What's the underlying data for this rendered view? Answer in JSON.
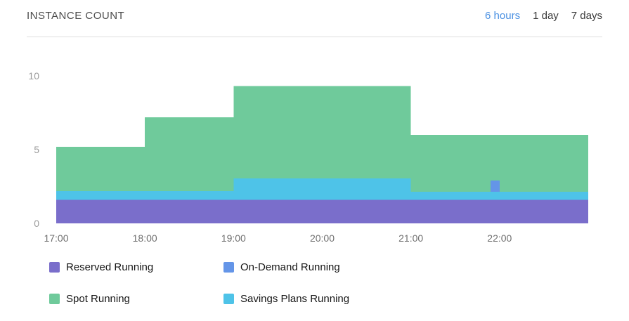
{
  "accent": "#4a90e2",
  "header": {
    "title": "INSTANCE COUNT",
    "range_options": [
      {
        "label": "6 hours",
        "active": true
      },
      {
        "label": "1 day",
        "active": false
      },
      {
        "label": "7 days",
        "active": false
      }
    ]
  },
  "chart_data": {
    "type": "area",
    "variant": "stacked-step",
    "title": "INSTANCE COUNT",
    "x_range": [
      17,
      23
    ],
    "ylim": [
      0,
      10
    ],
    "grid": "off",
    "legend_position": "bottom",
    "y_tick_values": [
      10,
      5,
      0
    ],
    "x_tick_hours": [
      17,
      18,
      19,
      20,
      21,
      22
    ],
    "x_tick_labels": [
      "17:00",
      "18:00",
      "19:00",
      "20:00",
      "21:00",
      "22:00"
    ],
    "stack_order": [
      "reserved",
      "savings",
      "on_demand",
      "spot"
    ],
    "colors": {
      "reserved": "#7a6ecb",
      "on_demand": "#6495e8",
      "spot": "#6fca9b",
      "savings": "#4ec3e8"
    },
    "series_labels": {
      "reserved": "Reserved Running",
      "on_demand": "On-Demand Running",
      "spot": "Spot Running",
      "savings": "Savings Plans Running"
    },
    "segments": [
      {
        "from": 17.0,
        "to": 18.0,
        "values": {
          "reserved": 1.6,
          "savings": 0.6,
          "on_demand": 0,
          "spot": 3.0
        }
      },
      {
        "from": 18.0,
        "to": 19.0,
        "values": {
          "reserved": 1.6,
          "savings": 0.6,
          "on_demand": 0,
          "spot": 5.0
        }
      },
      {
        "from": 19.0,
        "to": 21.0,
        "values": {
          "reserved": 1.6,
          "savings": 1.45,
          "on_demand": 0,
          "spot": 6.25
        }
      },
      {
        "from": 21.0,
        "to": 21.9,
        "values": {
          "reserved": 1.6,
          "savings": 0.55,
          "on_demand": 0,
          "spot": 3.85
        }
      },
      {
        "from": 21.9,
        "to": 22.0,
        "values": {
          "reserved": 1.6,
          "savings": 0.55,
          "on_demand": 0.75,
          "spot": 3.1
        }
      },
      {
        "from": 22.0,
        "to": 23.0,
        "values": {
          "reserved": 1.6,
          "savings": 0.55,
          "on_demand": 0,
          "spot": 3.85
        }
      }
    ]
  },
  "legend": {
    "items": [
      {
        "series": "reserved",
        "label": "Reserved Running"
      },
      {
        "series": "on_demand",
        "label": "On-Demand Running"
      },
      {
        "series": "spot",
        "label": "Spot Running"
      },
      {
        "series": "savings",
        "label": "Savings Plans Running"
      }
    ]
  }
}
